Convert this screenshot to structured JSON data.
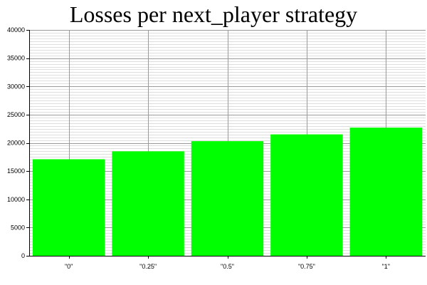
{
  "chart_data": {
    "type": "bar",
    "title": "Losses per next_player strategy",
    "xlabel": "",
    "ylabel": "",
    "categories": [
      "\"0\"",
      "\"0.25\"",
      "\"0.5\"",
      "\"0.75\"",
      "\"1\""
    ],
    "values": [
      17100,
      18500,
      20300,
      21500,
      22700
    ],
    "ylim": [
      0,
      40000
    ],
    "y_ticks": [
      "0",
      "5000",
      "10000",
      "15000",
      "20000",
      "25000",
      "30000",
      "35000",
      "40000"
    ],
    "grid": true,
    "bar_color": "#00ff00",
    "grid_major_color": "#9a9a9a",
    "grid_minor_color": "#dedede"
  }
}
